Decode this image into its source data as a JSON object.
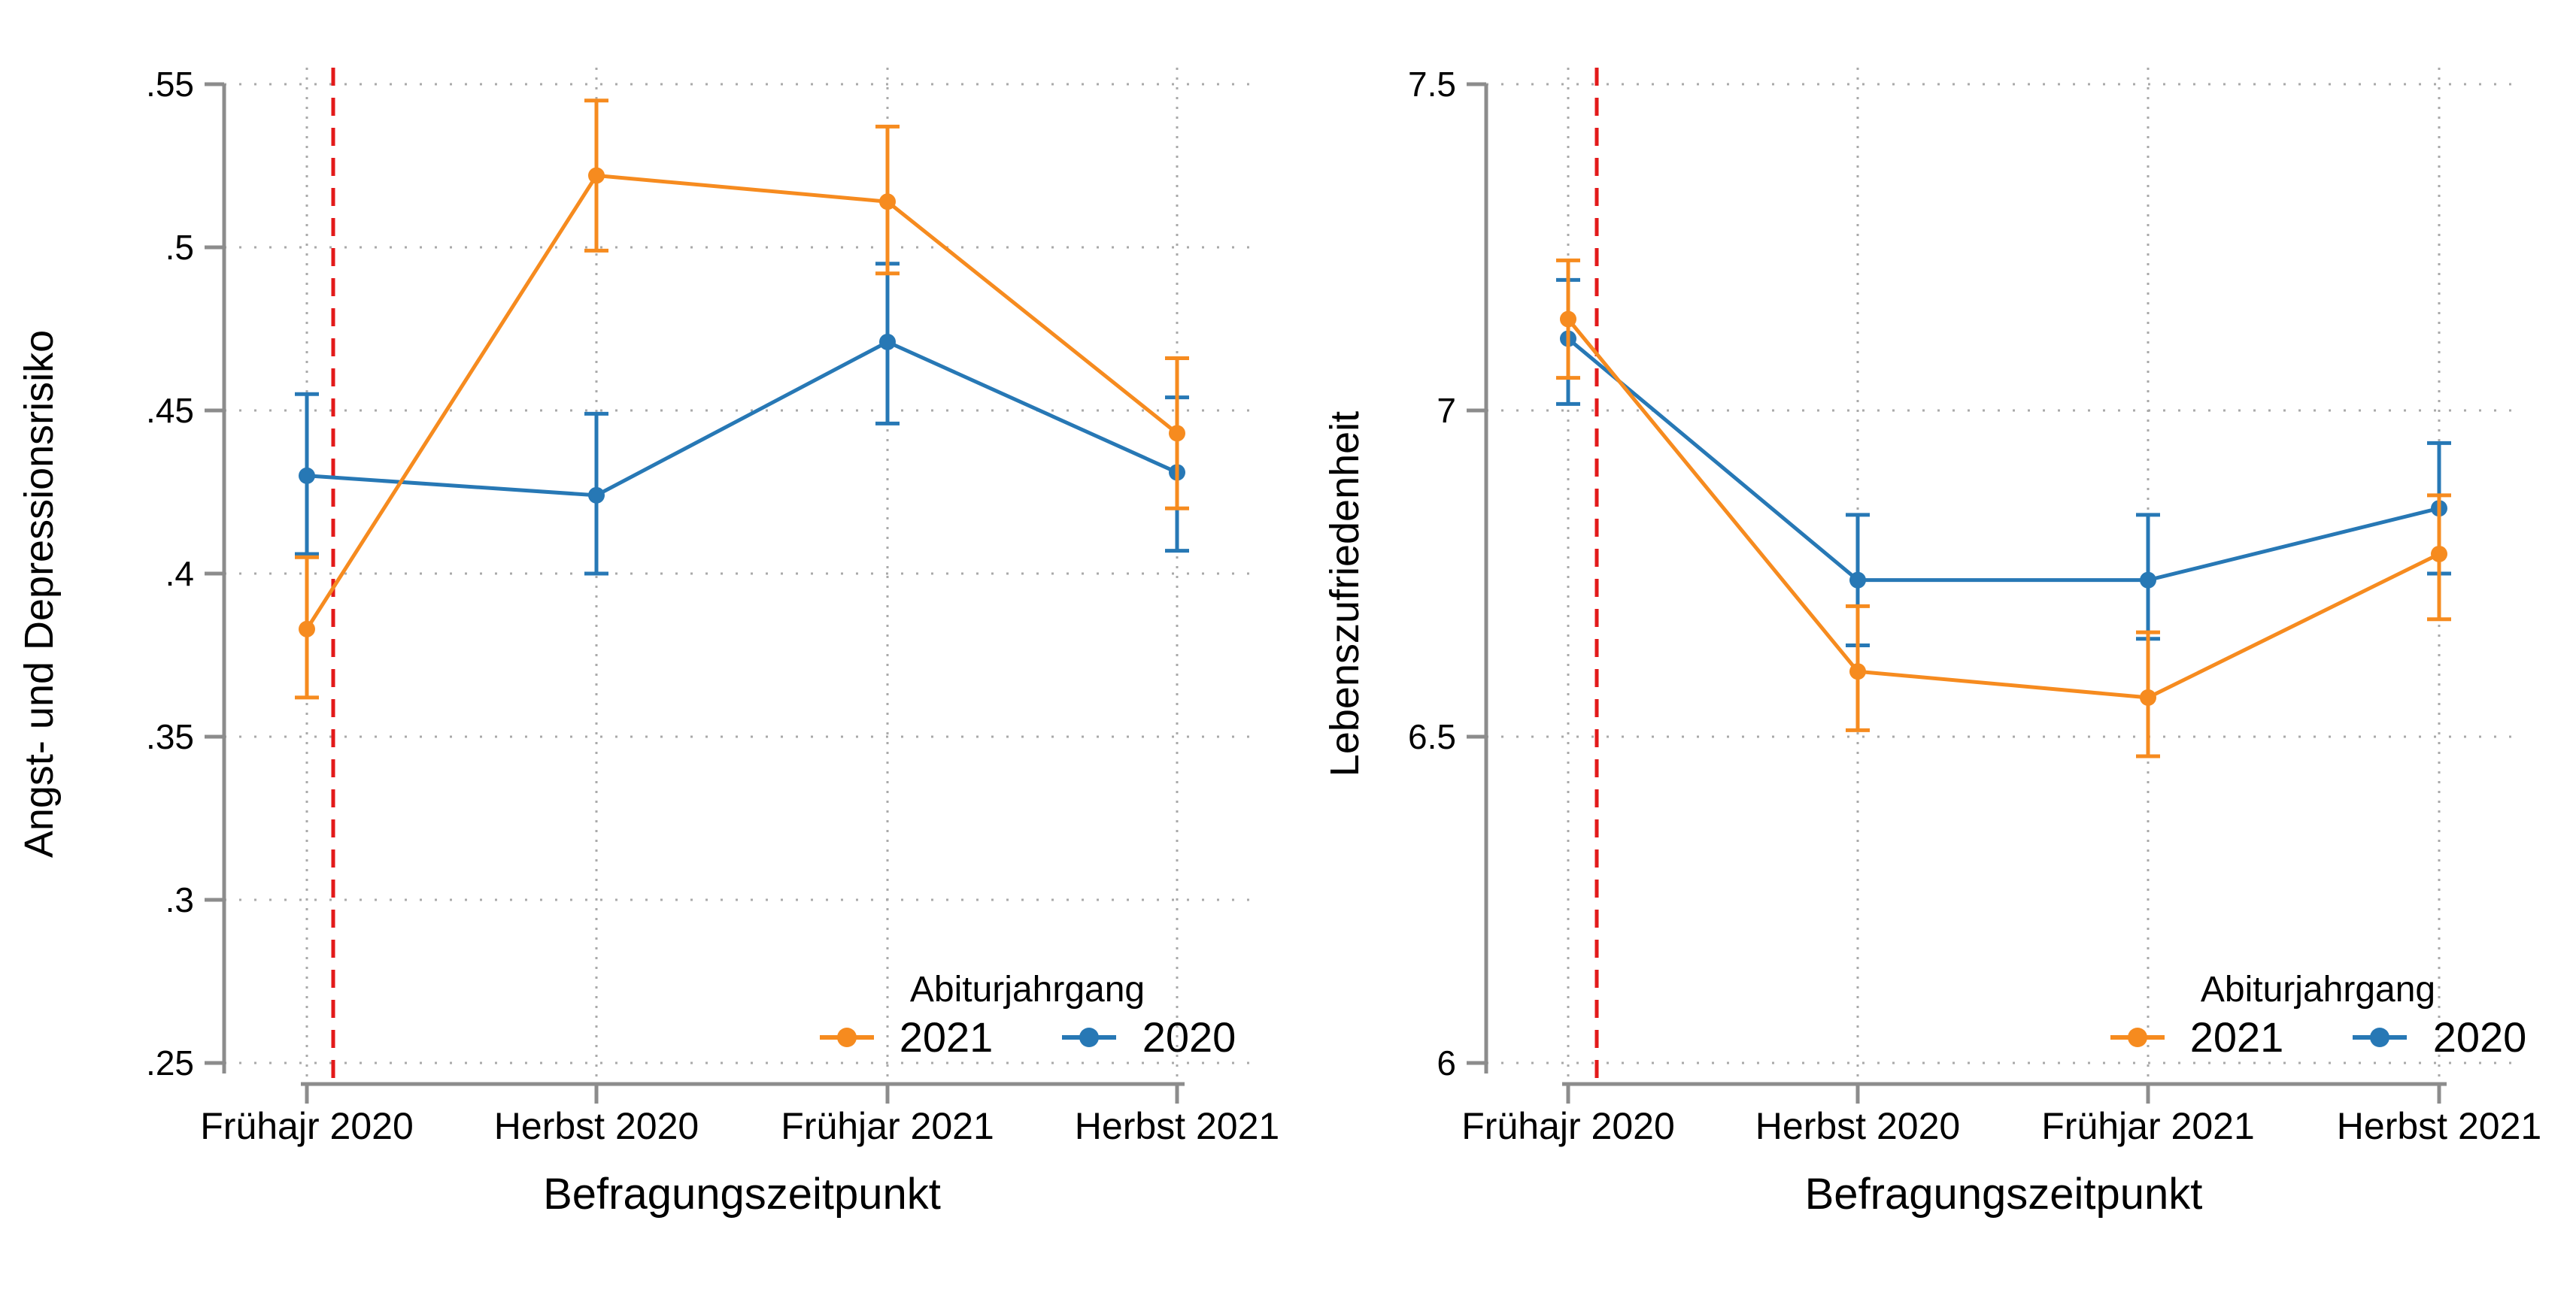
{
  "figure": {
    "background": "#ffffff",
    "x_categories": [
      "Frühajr 2020",
      "Herbst 2020",
      "Frühjar 2021",
      "Herbst 2021"
    ],
    "xlabel": "Befragungszeitpunkt",
    "legend": {
      "title": "Abiturjahrgang",
      "entries": [
        "2021",
        "2020"
      ],
      "position": "inside-bottom-right",
      "frame": false
    },
    "colors": {
      "series_2021": "#F68B1F",
      "series_2020": "#2778B5",
      "reference_line": "#E31A1A",
      "axis": "#8C8C8C",
      "grid": "#A9A9A9"
    },
    "reference_line": {
      "style": "dashed",
      "orientation": "vertical",
      "position": "just after Frühajr 2020"
    }
  },
  "chart_data": [
    {
      "type": "line",
      "title": "",
      "xlabel": "Befragungszeitpunkt",
      "ylabel": "Angst- und Depressionsrisiko",
      "categories": [
        "Frühajr 2020",
        "Herbst 2020",
        "Frühjar 2021",
        "Herbst 2021"
      ],
      "ylim": [
        0.25,
        0.55
      ],
      "ytick_values": [
        0.25,
        0.3,
        0.35,
        0.4,
        0.45,
        0.5,
        0.55
      ],
      "ytick_labels": [
        ".25",
        ".3",
        ".35",
        ".4",
        ".45",
        ".5",
        ".55"
      ],
      "grid": true,
      "legend_position": "inside bottom right",
      "series": [
        {
          "name": "2020",
          "color": "#2778B5",
          "values": [
            0.43,
            0.424,
            0.471,
            0.431
          ],
          "ci_low": [
            0.406,
            0.4,
            0.446,
            0.407
          ],
          "ci_high": [
            0.455,
            0.449,
            0.495,
            0.454
          ]
        },
        {
          "name": "2021",
          "color": "#F68B1F",
          "values": [
            0.383,
            0.522,
            0.514,
            0.443
          ],
          "ci_low": [
            0.362,
            0.499,
            0.492,
            0.42
          ],
          "ci_high": [
            0.405,
            0.545,
            0.537,
            0.466
          ]
        }
      ]
    },
    {
      "type": "line",
      "title": "",
      "xlabel": "Befragungszeitpunkt",
      "ylabel": "Lebenszufriedenheit",
      "categories": [
        "Frühajr 2020",
        "Herbst 2020",
        "Frühjar 2021",
        "Herbst 2021"
      ],
      "ylim": [
        6,
        7.5
      ],
      "ytick_values": [
        6,
        6.5,
        7,
        7.5
      ],
      "ytick_labels": [
        "6",
        "6.5",
        "7",
        "7.5"
      ],
      "grid": true,
      "legend_position": "inside bottom right",
      "series": [
        {
          "name": "2020",
          "color": "#2778B5",
          "values": [
            7.11,
            6.74,
            6.74,
            6.85
          ],
          "ci_low": [
            7.01,
            6.64,
            6.65,
            6.75
          ],
          "ci_high": [
            7.2,
            6.84,
            6.84,
            6.95
          ]
        },
        {
          "name": "2021",
          "color": "#F68B1F",
          "values": [
            7.14,
            6.6,
            6.56,
            6.78
          ],
          "ci_low": [
            7.05,
            6.51,
            6.47,
            6.68
          ],
          "ci_high": [
            7.23,
            6.7,
            6.66,
            6.87
          ]
        }
      ]
    }
  ]
}
